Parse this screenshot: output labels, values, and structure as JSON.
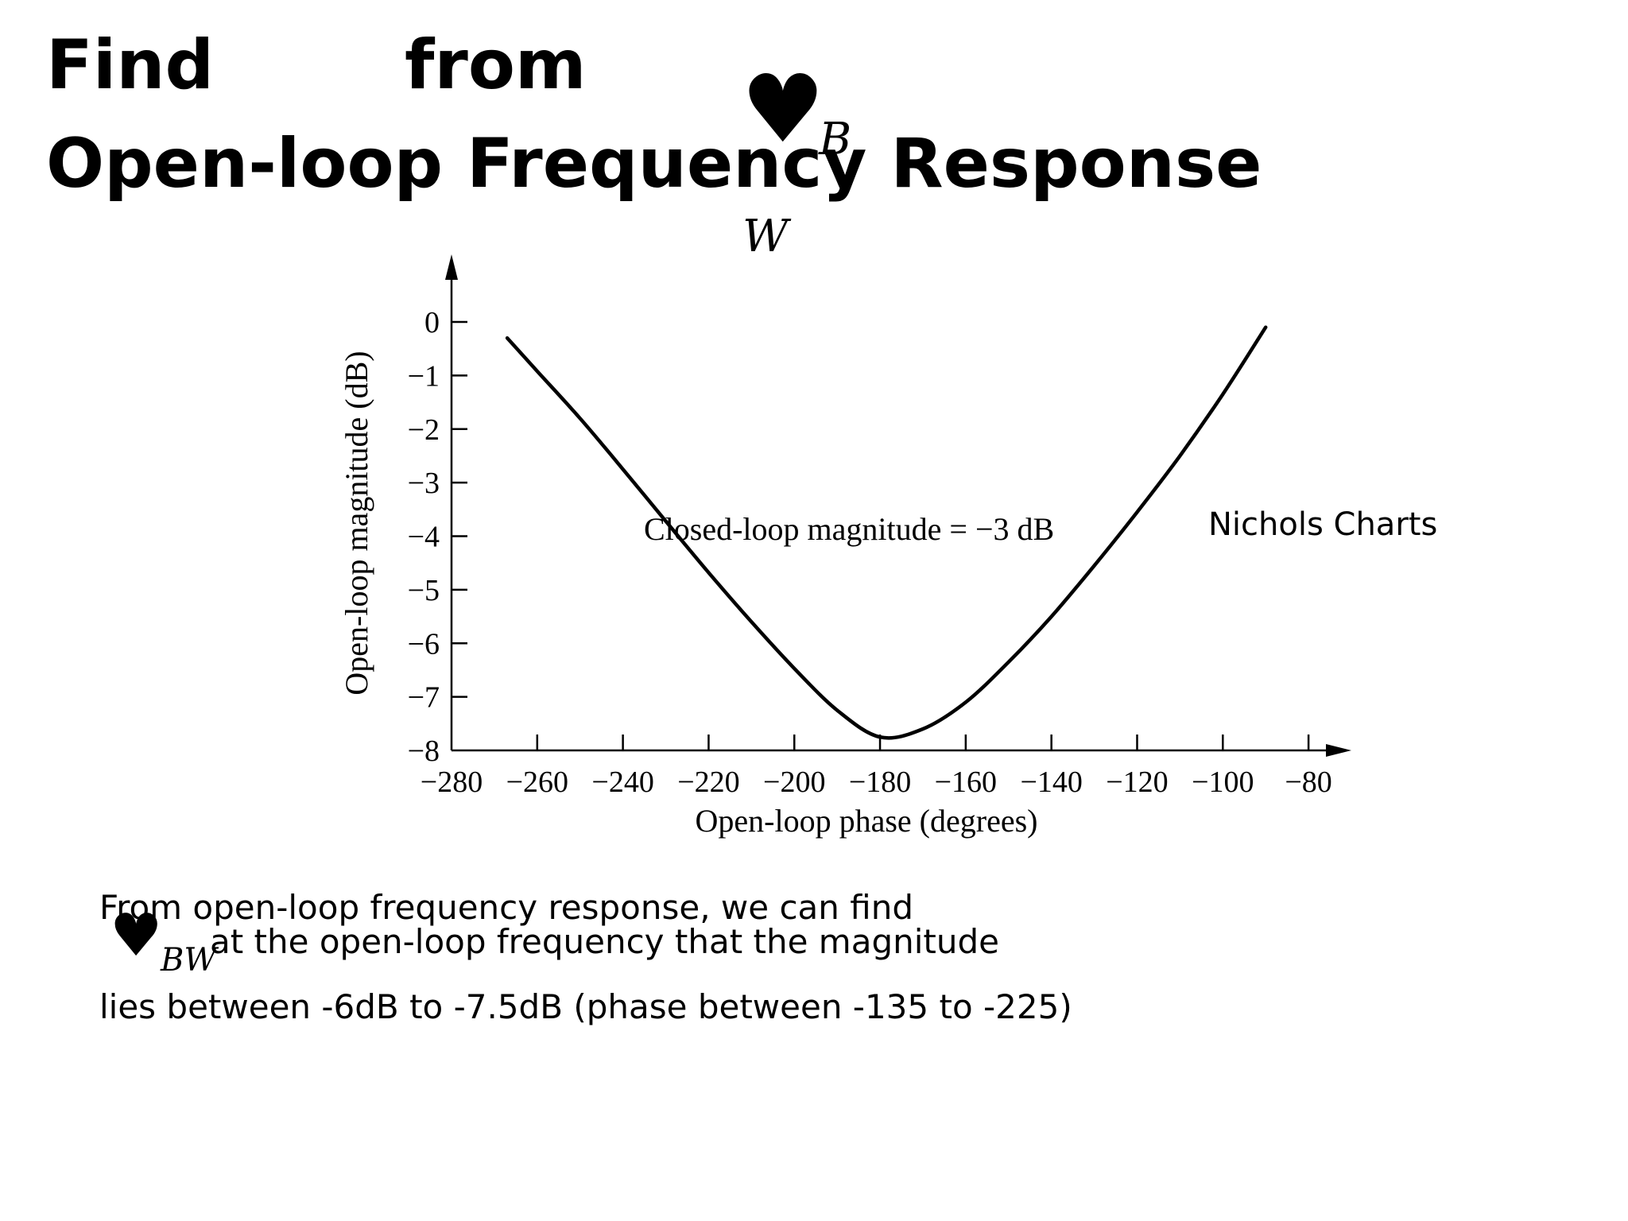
{
  "slide": {
    "title_line1_a": "Find",
    "title_line1_b": "from",
    "title_line2": "Open-loop Frequency Response",
    "title_symbol": "♥",
    "title_symbol_sub1": "B",
    "title_symbol_sub2": "W",
    "aside_label": "Nichols Charts",
    "body_line1": "From open-loop frequency response, we can find",
    "body_symbol": "♥",
    "body_symbol_sub": "BW",
    "body_line2": "at the open-loop frequency that the magnitude",
    "body_line3": "lies between -6dB to -7.5dB (phase between -135 to -225)"
  },
  "chart_data": {
    "type": "line",
    "title": "",
    "xlabel": "Open-loop phase (degrees)",
    "ylabel": "Open-loop magnitude (dB)",
    "xlim": [
      -280,
      -70
    ],
    "ylim": [
      -8,
      1
    ],
    "x_ticks": [
      -280,
      -260,
      -240,
      -220,
      -200,
      -180,
      -160,
      -140,
      -120,
      -100,
      -80
    ],
    "x_tick_labels": [
      "−280",
      "−260",
      "−240",
      "−220",
      "−200",
      "−180",
      "−160",
      "−140",
      "−120",
      "−100",
      "−80"
    ],
    "y_ticks": [
      0,
      -1,
      -2,
      -3,
      -4,
      -5,
      -6,
      -7,
      -8
    ],
    "y_tick_labels": [
      "0",
      "−1",
      "−2",
      "−3",
      "−4",
      "−5",
      "−6",
      "−7",
      "−8"
    ],
    "grid": false,
    "annotation": "Closed-loop magnitude = −3 dB",
    "series": [
      {
        "x": [
          -267,
          -260,
          -250,
          -240,
          -230,
          -220,
          -210,
          -200,
          -190,
          -180,
          -170,
          -160,
          -150,
          -140,
          -130,
          -120,
          -110,
          -100,
          -90
        ],
        "y": [
          -0.3,
          -0.92,
          -1.8,
          -2.75,
          -3.72,
          -4.68,
          -5.6,
          -6.47,
          -7.25,
          -7.75,
          -7.6,
          -7.1,
          -6.35,
          -5.5,
          -4.55,
          -3.55,
          -2.5,
          -1.35,
          -0.1
        ]
      }
    ]
  }
}
